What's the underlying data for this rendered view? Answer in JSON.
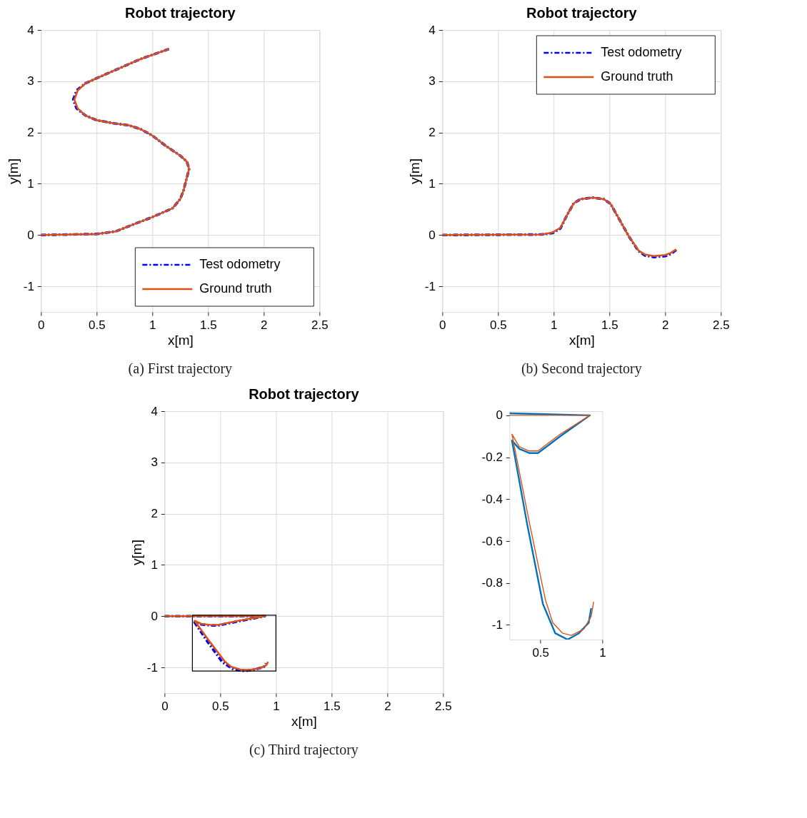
{
  "chart_data": [
    {
      "type": "line",
      "title": "Robot trajectory",
      "xlabel": "x[m]",
      "ylabel": "y[m]",
      "xlim": [
        0,
        2.5
      ],
      "ylim": [
        -1.5,
        4
      ],
      "xticks": [
        0,
        0.5,
        1,
        1.5,
        2,
        2.5
      ],
      "yticks": [
        -1,
        0,
        1,
        2,
        3,
        4
      ],
      "grid": true,
      "legend": "bottom right",
      "annotations": [
        "(a) First trajectory"
      ],
      "series": [
        {
          "name": "Test odometry",
          "color": "#0000ff",
          "line_style": "dashed",
          "x": [
            0,
            0.5,
            0.67,
            0.81,
            1.0,
            1.18,
            1.25,
            1.28,
            1.33,
            1.31,
            1.25,
            1.12,
            1.0,
            0.9,
            0.79,
            0.65,
            0.5,
            0.4,
            0.32,
            0.29,
            0.32,
            0.4,
            0.48,
            0.69,
            0.89,
            1.15
          ],
          "values": [
            0,
            0.02,
            0.07,
            0.19,
            0.35,
            0.52,
            0.7,
            0.87,
            1.29,
            1.43,
            1.55,
            1.74,
            1.94,
            2.06,
            2.14,
            2.18,
            2.24,
            2.33,
            2.47,
            2.64,
            2.82,
            2.96,
            3.04,
            3.24,
            3.43,
            3.63
          ]
        },
        {
          "name": "Ground truth",
          "color": "#d95319",
          "line_style": "solid",
          "x": [
            0,
            0.5,
            0.67,
            0.81,
            1.0,
            1.18,
            1.25,
            1.28,
            1.33,
            1.31,
            1.25,
            1.12,
            1.0,
            0.9,
            0.79,
            0.65,
            0.5,
            0.4,
            0.33,
            0.3,
            0.33,
            0.4,
            0.48,
            0.69,
            0.89,
            1.15
          ],
          "values": [
            0,
            0.02,
            0.07,
            0.19,
            0.35,
            0.52,
            0.7,
            0.87,
            1.29,
            1.43,
            1.55,
            1.74,
            1.94,
            2.06,
            2.14,
            2.18,
            2.24,
            2.33,
            2.47,
            2.64,
            2.82,
            2.96,
            3.04,
            3.24,
            3.43,
            3.63
          ]
        }
      ]
    },
    {
      "type": "line",
      "title": "Robot trajectory",
      "xlabel": "x[m]",
      "ylabel": "y[m]",
      "xlim": [
        0,
        2.5
      ],
      "ylim": [
        -1.5,
        4
      ],
      "xticks": [
        0,
        0.5,
        1,
        1.5,
        2,
        2.5
      ],
      "yticks": [
        -1,
        0,
        1,
        2,
        3,
        4
      ],
      "grid": true,
      "legend": "top right",
      "annotations": [
        "(b) Second trajectory"
      ],
      "series": [
        {
          "name": "Test odometry",
          "color": "#0000ff",
          "line_style": "dashed",
          "x": [
            0,
            0.89,
            0.99,
            1.06,
            1.12,
            1.18,
            1.24,
            1.35,
            1.45,
            1.51,
            1.59,
            1.67,
            1.76,
            1.82,
            1.9,
            2.0,
            2.05,
            2.1
          ],
          "values": [
            0,
            0.01,
            0.04,
            0.13,
            0.39,
            0.62,
            0.7,
            0.73,
            0.7,
            0.61,
            0.3,
            -0.01,
            -0.31,
            -0.4,
            -0.43,
            -0.41,
            -0.37,
            -0.29
          ]
        },
        {
          "name": "Ground truth",
          "color": "#d95319",
          "line_style": "solid",
          "x": [
            0,
            0.89,
            0.99,
            1.06,
            1.12,
            1.18,
            1.24,
            1.35,
            1.45,
            1.51,
            1.59,
            1.67,
            1.76,
            1.82,
            1.9,
            2.0,
            2.05,
            2.1
          ],
          "values": [
            0,
            0.01,
            0.05,
            0.14,
            0.39,
            0.62,
            0.7,
            0.73,
            0.7,
            0.61,
            0.3,
            -0.01,
            -0.3,
            -0.38,
            -0.41,
            -0.39,
            -0.35,
            -0.28
          ]
        }
      ]
    },
    {
      "type": "line",
      "title": "Robot trajectory",
      "xlabel": "x[m]",
      "ylabel": "y[m]",
      "xlim": [
        0,
        2.5
      ],
      "ylim": [
        -1.5,
        4
      ],
      "xticks": [
        0,
        0.5,
        1,
        1.5,
        2,
        2.5
      ],
      "yticks": [
        -1,
        0,
        1,
        2,
        3,
        4
      ],
      "grid": true,
      "annotations": [
        "(c) Third trajectory"
      ],
      "series": [
        {
          "color": "#0000ff",
          "line_style": "dashed",
          "x": [
            0,
            0.9,
            0.66,
            0.48,
            0.41,
            0.33,
            0.27,
            0.39,
            0.52,
            0.62,
            0.72,
            0.81,
            0.89,
            0.91
          ],
          "values": [
            0,
            0,
            -0.1,
            -0.18,
            -0.18,
            -0.16,
            -0.12,
            -0.51,
            -0.9,
            -1.04,
            -1.07,
            -1.04,
            -0.99,
            -0.92
          ]
        },
        {
          "color": "#d95319",
          "line_style": "solid",
          "x": [
            0,
            0.9,
            0.66,
            0.48,
            0.41,
            0.33,
            0.27,
            0.41,
            0.54,
            0.6,
            0.68,
            0.75,
            0.85,
            0.91,
            0.93
          ],
          "values": [
            0,
            0,
            -0.09,
            -0.17,
            -0.17,
            -0.15,
            -0.09,
            -0.51,
            -0.88,
            -0.99,
            -1.04,
            -1.05,
            -1.02,
            -0.96,
            -0.89
          ]
        }
      ]
    },
    {
      "type": "line",
      "xlim": [
        0.25,
        1.0
      ],
      "ylim": [
        -1.07,
        0.02
      ],
      "xticks": [
        0.5,
        1
      ],
      "yticks": [
        -1,
        -0.8,
        -0.6,
        -0.4,
        -0.2,
        0
      ],
      "series": [
        {
          "color": "#0072bd",
          "line_style": "solid",
          "x": [
            0.25,
            0.9,
            0.66,
            0.48,
            0.41,
            0.33,
            0.27,
            0.39,
            0.52,
            0.62,
            0.72,
            0.81,
            0.89,
            0.91
          ],
          "values": [
            0.01,
            0,
            -0.1,
            -0.18,
            -0.18,
            -0.16,
            -0.12,
            -0.51,
            -0.9,
            -1.04,
            -1.07,
            -1.04,
            -0.99,
            -0.92
          ]
        },
        {
          "color": "#d95319",
          "line_style": "solid",
          "x": [
            0.25,
            0.9,
            0.66,
            0.48,
            0.41,
            0.33,
            0.27,
            0.41,
            0.54,
            0.6,
            0.68,
            0.75,
            0.85,
            0.91,
            0.93
          ],
          "values": [
            0,
            0,
            -0.09,
            -0.17,
            -0.17,
            -0.15,
            -0.09,
            -0.51,
            -0.88,
            -0.99,
            -1.04,
            -1.05,
            -1.02,
            -0.96,
            -0.89
          ]
        }
      ]
    }
  ]
}
